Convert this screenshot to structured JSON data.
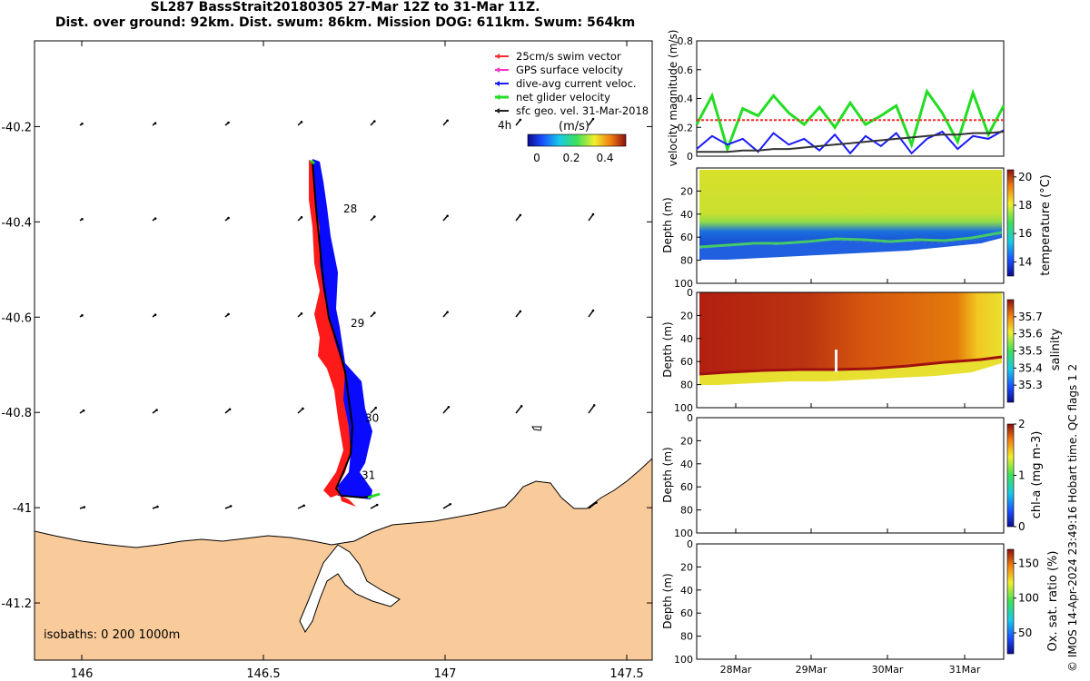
{
  "title": {
    "line1": "SL287 BassStrait20180305 27-Mar 12Z to 31-Mar 11Z.",
    "line2": "Dist. over ground: 92km. Dist. swum: 86km. Mission DOG: 611km. Swum: 564km"
  },
  "colors": {
    "swim_vector": "#ff2a2a",
    "gps_velocity": "#ff33cc",
    "dive_avg": "#1a1aff",
    "net_glider": "#22dd22",
    "sfc_geo": "#222222",
    "land": "#f9cb9b",
    "track_red": "#ff1a1a",
    "track_blue": "#0a0aff"
  },
  "chart_data": [
    {
      "type": "map",
      "name": "glider-track-map",
      "xlim": [
        145.87,
        147.57
      ],
      "ylim": [
        -41.32,
        -40.02
      ],
      "xticks": [
        146,
        146.5,
        147,
        147.5
      ],
      "xtick_labels": [
        "146",
        "146.5",
        "147",
        "147.5"
      ],
      "yticks": [
        -40.2,
        -40.4,
        -40.6,
        -40.8,
        -41,
        -41.2
      ],
      "ytick_labels": [
        "-40.2",
        "-40.4",
        "-40.6",
        "-40.8",
        "-41",
        "-41.2"
      ],
      "legend": [
        {
          "label": "25cm/s swim vector",
          "color": "#ff2a2a"
        },
        {
          "label": "GPS surface velocity",
          "color": "#ff33cc"
        },
        {
          "label": "dive-avg current veloc.",
          "color": "#1a1aff"
        },
        {
          "label": "net glider velocity",
          "color": "#22dd22"
        },
        {
          "label": "sfc geo. vel. 31-Mar-2018",
          "color": "#222222"
        }
      ],
      "legend_position": "top-right",
      "colorbar": {
        "label": "(m/s)",
        "ticks": [
          "0",
          "0.2",
          "0.4"
        ],
        "range": [
          0,
          0.5
        ],
        "note": "4h"
      },
      "day_labels": [
        {
          "text": "28",
          "lon": 146.72,
          "lat": -40.38
        },
        {
          "text": "29",
          "lon": 146.74,
          "lat": -40.62
        },
        {
          "text": "30",
          "lon": 146.78,
          "lat": -40.82
        },
        {
          "text": "31",
          "lon": 146.77,
          "lat": -40.94
        }
      ],
      "track": [
        [
          146.65,
          -40.28
        ],
        [
          146.66,
          -40.34
        ],
        [
          146.67,
          -40.39
        ],
        [
          146.68,
          -40.45
        ],
        [
          146.68,
          -40.51
        ],
        [
          146.69,
          -40.57
        ],
        [
          146.7,
          -40.62
        ],
        [
          146.73,
          -40.68
        ],
        [
          146.75,
          -40.74
        ],
        [
          146.76,
          -40.8
        ],
        [
          146.78,
          -40.86
        ],
        [
          146.76,
          -40.92
        ],
        [
          146.71,
          -40.97
        ],
        [
          146.68,
          -40.98
        ],
        [
          146.73,
          -40.99
        ],
        [
          146.81,
          -40.99
        ]
      ],
      "isobaths_note": "isobaths: 0   200  1000m"
    },
    {
      "type": "line",
      "name": "velocity-magnitude",
      "ylabel": "velocity magnitude (m/s)",
      "ylim": [
        0,
        0.8
      ],
      "yticks": [
        0,
        0.2,
        0.4,
        0.6,
        0.8
      ],
      "ytick_labels": [
        "0",
        "0.2",
        "0.4",
        "0.6",
        "0.8"
      ],
      "x": [
        0,
        0.05,
        0.1,
        0.15,
        0.2,
        0.25,
        0.3,
        0.35,
        0.4,
        0.45,
        0.5,
        0.55,
        0.6,
        0.65,
        0.7,
        0.75,
        0.8,
        0.85,
        0.9,
        0.95,
        1.0
      ],
      "series": [
        {
          "name": "net glider velocity",
          "values": [
            0.22,
            0.42,
            0.05,
            0.33,
            0.28,
            0.42,
            0.3,
            0.22,
            0.34,
            0.2,
            0.37,
            0.22,
            0.28,
            0.35,
            0.08,
            0.45,
            0.3,
            0.1,
            0.44,
            0.15,
            0.35
          ]
        },
        {
          "name": "dive-avg current veloc.",
          "values": [
            0.05,
            0.14,
            0.08,
            0.12,
            0.03,
            0.16,
            0.08,
            0.12,
            0.04,
            0.15,
            0.02,
            0.14,
            0.07,
            0.16,
            0.02,
            0.12,
            0.17,
            0.05,
            0.14,
            0.12,
            0.18
          ]
        },
        {
          "name": "sfc geo. vel.",
          "values": [
            0.03,
            0.03,
            0.03,
            0.04,
            0.04,
            0.05,
            0.05,
            0.06,
            0.07,
            0.08,
            0.09,
            0.1,
            0.11,
            0.12,
            0.13,
            0.14,
            0.15,
            0.15,
            0.16,
            0.16,
            0.17
          ]
        },
        {
          "name": "25cm/s swim vector",
          "values": [
            0.25,
            0.25,
            0.25,
            0.25,
            0.25,
            0.25,
            0.25,
            0.25,
            0.25,
            0.25,
            0.25,
            0.25,
            0.25,
            0.25,
            0.25,
            0.25,
            0.25,
            0.25,
            0.25,
            0.25,
            0.25
          ]
        }
      ]
    },
    {
      "type": "heatmap",
      "name": "temperature-section",
      "ylabel": "Depth (m)",
      "ylim": [
        100,
        0
      ],
      "yticks": [
        "20",
        "40",
        "60",
        "80",
        "100"
      ],
      "colorbar_label": "temperature (°C)",
      "colorbar_ticks": [
        "20",
        "18",
        "16",
        "14"
      ],
      "colorbar_range": [
        13,
        20.5
      ]
    },
    {
      "type": "heatmap",
      "name": "salinity-section",
      "ylabel": "Depth (m)",
      "ylim": [
        100,
        0
      ],
      "yticks": [
        "0",
        "20",
        "40",
        "60",
        "80",
        "100"
      ],
      "colorbar_label": "salinity",
      "colorbar_ticks": [
        "35.7",
        "35.6",
        "35.5",
        "35.4",
        "35.3"
      ],
      "colorbar_range": [
        35.2,
        35.8
      ]
    },
    {
      "type": "heatmap",
      "name": "chla-section",
      "ylabel": "Depth (m)",
      "ylim": [
        100,
        0
      ],
      "yticks": [
        "0",
        "20",
        "40",
        "60",
        "80",
        "100"
      ],
      "colorbar_label": "chl-a (mg m-3)",
      "colorbar_ticks": [
        "2",
        "1",
        "0"
      ],
      "colorbar_range": [
        0,
        2
      ]
    },
    {
      "type": "heatmap",
      "name": "oxygen-section",
      "ylabel": "Depth (m)",
      "ylim": [
        100,
        0
      ],
      "yticks": [
        "0",
        "20",
        "40",
        "60",
        "80",
        "100"
      ],
      "colorbar_label": "Ox. sat. ratio (%)",
      "colorbar_ticks": [
        "150",
        "100",
        "50"
      ],
      "colorbar_range": [
        20,
        170
      ],
      "xticks": [
        "28Mar",
        "29Mar",
        "30Mar",
        "31Mar"
      ]
    }
  ],
  "footer": "© IMOS 14-Apr-2024 23:49:16 Hobart time. QC flags 1  2"
}
